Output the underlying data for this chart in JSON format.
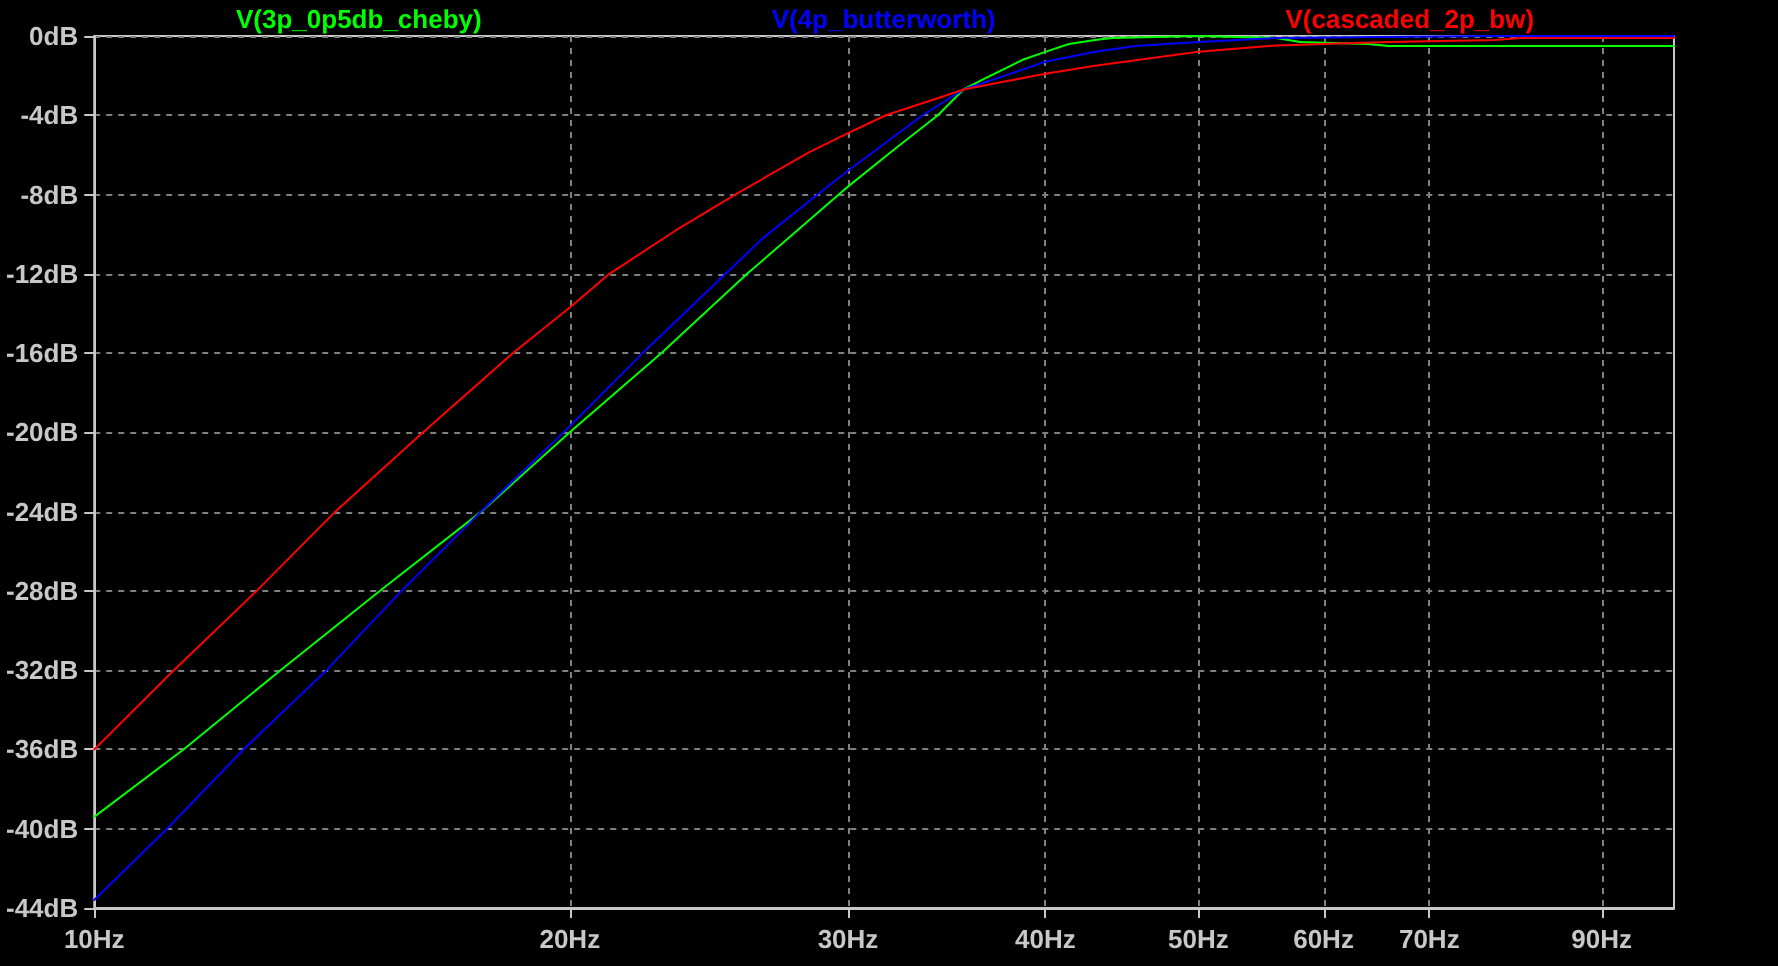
{
  "chart_data": {
    "type": "line",
    "log": "x",
    "grid": true,
    "legend": "top",
    "marker": "none",
    "xlim": [
      10,
      100
    ],
    "xticks": [
      {
        "value": 10,
        "label": "10Hz"
      },
      {
        "value": 20,
        "label": "20Hz"
      },
      {
        "value": 30,
        "label": "30Hz"
      },
      {
        "value": 40,
        "label": "40Hz"
      },
      {
        "value": 50,
        "label": "50Hz"
      },
      {
        "value": 60,
        "label": "60Hz"
      },
      {
        "value": 70,
        "label": "70Hz"
      },
      {
        "value": 90,
        "label": "90Hz"
      }
    ],
    "ylim": [
      -44,
      0
    ],
    "yticks": [
      {
        "value": -44,
        "label": "-44dB"
      },
      {
        "value": -40,
        "label": "-40dB"
      },
      {
        "value": -36,
        "label": "-36dB"
      },
      {
        "value": -32,
        "label": "-32dB"
      },
      {
        "value": -28,
        "label": "-28dB"
      },
      {
        "value": -24,
        "label": "-24dB"
      },
      {
        "value": -20,
        "label": "-20dB"
      },
      {
        "value": -16,
        "label": "-16dB"
      },
      {
        "value": -12,
        "label": "-12dB"
      },
      {
        "value": -8,
        "label": "-8dB"
      },
      {
        "value": -4,
        "label": "-4dB"
      },
      {
        "value": 0,
        "label": "0dB"
      }
    ],
    "series": [
      {
        "name": "V(3p_0p5db_cheby)",
        "color": "#00ff00",
        "x": [
          10,
          11.39,
          13.12,
          15.16,
          17.58,
          20,
          22.86,
          25.9,
          29.6,
          30,
          32,
          34.2,
          35.5,
          36.5,
          37.6,
          38.7,
          40,
          41.4,
          43,
          44.1,
          50,
          56,
          58,
          64,
          66,
          100
        ],
        "values": [
          -39.4,
          -36,
          -32,
          -28,
          -24,
          -20,
          -16,
          -12,
          -8,
          -7.6,
          -5.8,
          -4,
          -2.7,
          -2.2,
          -1.7,
          -1.2,
          -0.8,
          -0.4,
          -0.2,
          -0.1,
          0,
          -0.1,
          -0.3,
          -0.4,
          -0.5,
          -0.5
        ]
      },
      {
        "name": "V(4p_butterworth)",
        "color": "#0000ff",
        "x": [
          10,
          11.12,
          12.43,
          14.03,
          15.65,
          17.57,
          19.82,
          22.24,
          25.1,
          26.5,
          28.7,
          30,
          33.45,
          35.5,
          37.7,
          40,
          43,
          45.6,
          50,
          55.9,
          76,
          100
        ],
        "values": [
          -43.6,
          -40,
          -36,
          -32,
          -28,
          -24,
          -20,
          -16,
          -12,
          -10.2,
          -8,
          -6.8,
          -4,
          -2.7,
          -2,
          -1.3,
          -0.8,
          -0.5,
          -0.3,
          -0.1,
          0,
          0
        ]
      },
      {
        "name": "V(cascaded_2p_bw)",
        "color": "#ff0000",
        "x": [
          10,
          11.23,
          12.67,
          14.21,
          16.15,
          18.41,
          20,
          21.19,
          23.35,
          25.45,
          28.3,
          30,
          31.7,
          34.3,
          35.5,
          37.7,
          40,
          43,
          50,
          55.4,
          60,
          65.9,
          77,
          80,
          100
        ],
        "values": [
          -36,
          -32,
          -28,
          -24,
          -20,
          -16,
          -13.7,
          -12,
          -9.8,
          -8,
          -5.9,
          -4.9,
          -4,
          -3.1,
          -2.7,
          -2.3,
          -1.9,
          -1.5,
          -0.8,
          -0.5,
          -0.4,
          -0.3,
          -0.2,
          -0.1,
          -0.1
        ]
      }
    ]
  }
}
